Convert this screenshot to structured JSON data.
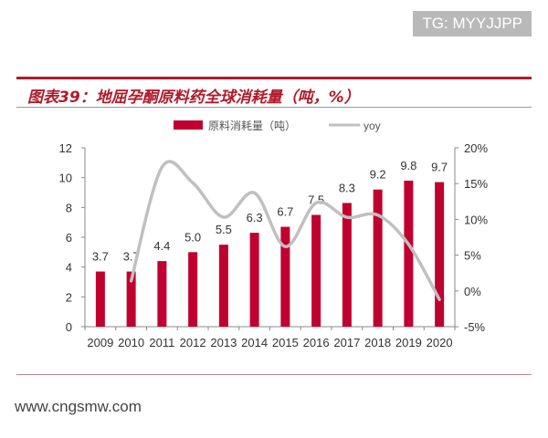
{
  "watermark_top": "TG: MYYJJPP",
  "watermark_bottom": "www.cngsmw.com",
  "chart_data": {
    "type": "bar+line",
    "title": "图表39：地屈孕酮原料药全球消耗量（吨，%）",
    "categories": [
      "2009",
      "2010",
      "2011",
      "2012",
      "2013",
      "2014",
      "2015",
      "2016",
      "2017",
      "2018",
      "2019",
      "2020"
    ],
    "series": [
      {
        "name": "原料消耗量（吨）",
        "type": "bar",
        "axis": "left",
        "color": "#c0002f",
        "values": [
          3.7,
          3.7,
          4.4,
          5.0,
          5.5,
          6.3,
          6.7,
          7.5,
          8.3,
          9.2,
          9.8,
          9.7
        ],
        "data_labels": [
          "3.7",
          "3.7",
          "4.4",
          "5.0",
          "5.5",
          "6.3",
          "6.7",
          "7.5",
          "8.3",
          "9.2",
          "9.8",
          "9.7"
        ]
      },
      {
        "name": "yoy",
        "type": "line",
        "axis": "right",
        "smooth": true,
        "color": "#c0c0c0",
        "values": [
          null,
          1.4,
          17.3,
          15.1,
          10.3,
          13.7,
          6.2,
          12.3,
          10.3,
          10.6,
          6.5,
          -1.2
        ]
      }
    ],
    "y_left": {
      "range": [
        0,
        12
      ],
      "ticks": [
        "0",
        "2",
        "4",
        "6",
        "8",
        "10",
        "12"
      ]
    },
    "y_right": {
      "range": [
        -5,
        20
      ],
      "ticks": [
        "-5%",
        "0%",
        "5%",
        "10%",
        "15%",
        "20%"
      ]
    },
    "grid": false,
    "legend": "top"
  }
}
